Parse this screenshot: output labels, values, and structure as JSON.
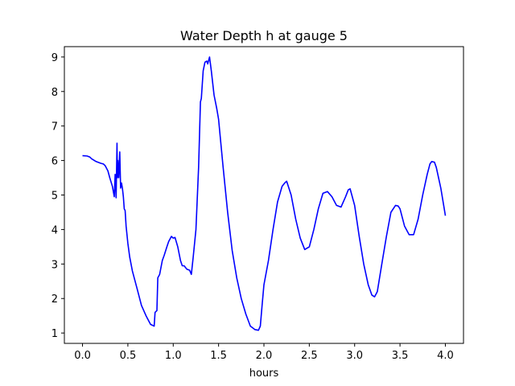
{
  "chart_data": {
    "type": "line",
    "title": "Water Depth h at gauge 5",
    "xlabel": "hours",
    "ylabel": "",
    "xlim": [
      -0.2,
      4.2
    ],
    "ylim": [
      0.7,
      9.3
    ],
    "x_ticks": [
      0.0,
      0.5,
      1.0,
      1.5,
      2.0,
      2.5,
      3.0,
      3.5,
      4.0
    ],
    "x_tick_labels": [
      "0.0",
      "0.5",
      "1.0",
      "1.5",
      "2.0",
      "2.5",
      "3.0",
      "3.5",
      "4.0"
    ],
    "y_ticks": [
      1,
      2,
      3,
      4,
      5,
      6,
      7,
      8,
      9
    ],
    "y_tick_labels": [
      "1",
      "2",
      "3",
      "4",
      "5",
      "6",
      "7",
      "8",
      "9"
    ],
    "grid": false,
    "legend": "none",
    "series": [
      {
        "color": "#0000ff",
        "x": [
          0.0,
          0.05,
          0.08,
          0.1,
          0.15,
          0.2,
          0.23,
          0.25,
          0.28,
          0.3,
          0.33,
          0.35,
          0.36,
          0.37,
          0.38,
          0.385,
          0.39,
          0.4,
          0.41,
          0.42,
          0.43,
          0.44,
          0.45,
          0.46,
          0.47,
          0.48,
          0.5,
          0.52,
          0.55,
          0.6,
          0.65,
          0.7,
          0.75,
          0.79,
          0.8,
          0.82,
          0.83,
          0.85,
          0.88,
          0.9,
          0.93,
          0.95,
          0.98,
          1.0,
          1.02,
          1.05,
          1.08,
          1.1,
          1.12,
          1.15,
          1.18,
          1.2,
          1.22,
          1.25,
          1.28,
          1.3,
          1.31,
          1.33,
          1.35,
          1.37,
          1.38,
          1.4,
          1.42,
          1.45,
          1.48,
          1.5,
          1.55,
          1.6,
          1.65,
          1.7,
          1.75,
          1.8,
          1.85,
          1.9,
          1.94,
          1.96,
          1.98,
          2.0,
          2.05,
          2.1,
          2.15,
          2.2,
          2.23,
          2.25,
          2.3,
          2.35,
          2.4,
          2.45,
          2.5,
          2.55,
          2.6,
          2.65,
          2.7,
          2.75,
          2.8,
          2.85,
          2.9,
          2.93,
          2.95,
          3.0,
          3.05,
          3.1,
          3.15,
          3.19,
          3.22,
          3.25,
          3.3,
          3.35,
          3.4,
          3.45,
          3.48,
          3.5,
          3.55,
          3.6,
          3.65,
          3.7,
          3.75,
          3.8,
          3.83,
          3.85,
          3.88,
          3.9,
          3.95,
          4.0
        ],
        "y": [
          6.14,
          6.13,
          6.1,
          6.05,
          5.97,
          5.92,
          5.9,
          5.85,
          5.7,
          5.5,
          5.25,
          4.95,
          5.6,
          4.92,
          6.5,
          5.5,
          6.0,
          5.5,
          6.25,
          5.2,
          5.35,
          5.2,
          4.95,
          4.6,
          4.55,
          4.1,
          3.6,
          3.2,
          2.8,
          2.3,
          1.8,
          1.5,
          1.25,
          1.2,
          1.6,
          1.65,
          2.6,
          2.7,
          3.1,
          3.25,
          3.5,
          3.65,
          3.8,
          3.75,
          3.77,
          3.5,
          3.1,
          2.95,
          2.95,
          2.85,
          2.82,
          2.7,
          3.2,
          4.0,
          5.8,
          7.7,
          7.8,
          8.6,
          8.85,
          8.88,
          8.8,
          9.0,
          8.6,
          7.9,
          7.5,
          7.2,
          5.8,
          4.5,
          3.4,
          2.6,
          2.0,
          1.55,
          1.2,
          1.1,
          1.08,
          1.2,
          1.8,
          2.4,
          3.1,
          4.0,
          4.8,
          5.25,
          5.35,
          5.4,
          5.0,
          4.3,
          3.75,
          3.42,
          3.5,
          4.0,
          4.6,
          5.05,
          5.1,
          4.95,
          4.7,
          4.65,
          4.95,
          5.15,
          5.18,
          4.7,
          3.8,
          3.0,
          2.4,
          2.1,
          2.05,
          2.2,
          3.0,
          3.8,
          4.5,
          4.7,
          4.68,
          4.6,
          4.1,
          3.85,
          3.85,
          4.3,
          5.0,
          5.6,
          5.9,
          5.97,
          5.95,
          5.8,
          5.2,
          4.4
        ]
      }
    ]
  }
}
